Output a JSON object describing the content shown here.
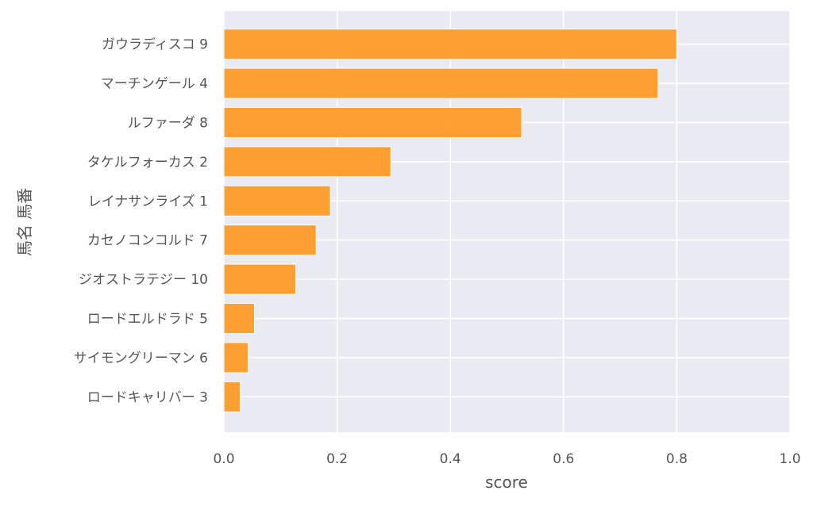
{
  "chart_data": {
    "type": "bar",
    "orientation": "horizontal",
    "categories": [
      "ガウラディスコ 9",
      "マーチンゲール 4",
      "ルファーダ 8",
      "タケルフォーカス 2",
      "レイナサンライズ 1",
      "カセノコンコルド 7",
      "ジオストラテジー 10",
      "ロードエルドラド 5",
      "サイモングリーマン 6",
      "ロードキャリバー 3"
    ],
    "values": [
      0.8,
      0.767,
      0.526,
      0.295,
      0.188,
      0.163,
      0.127,
      0.054,
      0.043,
      0.029
    ],
    "xlabel": "score",
    "ylabel": "馬名 馬番",
    "xlim": [
      0.0,
      1.0
    ],
    "xticks": [
      "0.0",
      "0.2",
      "0.4",
      "0.6",
      "0.8",
      "1.0"
    ],
    "grid": true,
    "bar_color": "#ff9822",
    "background_color": "#eaeaf2"
  }
}
